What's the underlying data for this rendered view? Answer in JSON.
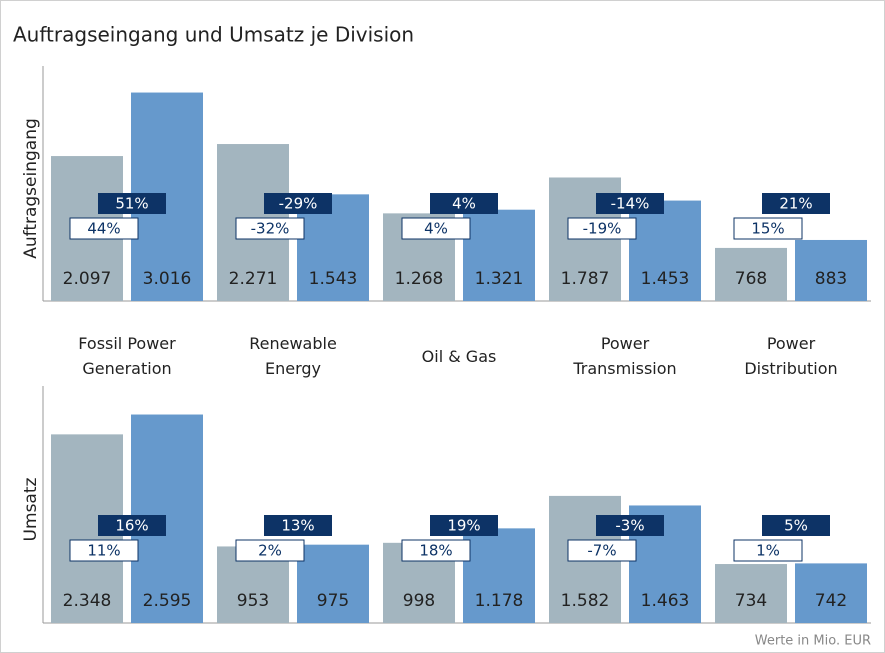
{
  "title": "Auftragseingang und Umsatz je Division",
  "footnote": "Werte in Mio. EUR",
  "chart_data": [
    {
      "type": "bar",
      "ylabel": "Auftragseingang",
      "categories": [
        "Fossil Power Generation",
        "Renewable Energy",
        "Oil & Gas",
        "Power Transmission",
        "Power Distribution"
      ],
      "ylim": [
        0,
        3400
      ],
      "series": [
        {
          "color": "#a3b5bf",
          "values": [
            2097,
            2271,
            1268,
            1787,
            768
          ],
          "value_labels": [
            "2.097",
            "2.271",
            "1.268",
            "1.787",
            "768"
          ]
        },
        {
          "color": "#6699cc",
          "values": [
            3016,
            1543,
            1321,
            1453,
            883
          ],
          "value_labels": [
            "3.016",
            "1.543",
            "1.321",
            "1.453",
            "883"
          ]
        }
      ],
      "annotations": {
        "nominal": [
          "51%",
          "-29%",
          "4%",
          "-14%",
          "21%"
        ],
        "comparable": [
          "44%",
          "-32%",
          "4%",
          "-19%",
          "15%"
        ]
      }
    },
    {
      "type": "bar",
      "ylabel": "Umsatz",
      "categories": [
        "Fossil Power Generation",
        "Renewable Energy",
        "Oil & Gas",
        "Power Transmission",
        "Power Distribution"
      ],
      "ylim": [
        0,
        2950
      ],
      "series": [
        {
          "color": "#a3b5bf",
          "values": [
            2348,
            953,
            998,
            1582,
            734
          ],
          "value_labels": [
            "2.348",
            "953",
            "998",
            "1.582",
            "734"
          ]
        },
        {
          "color": "#6699cc",
          "values": [
            2595,
            975,
            1178,
            1463,
            742
          ],
          "value_labels": [
            "2.595",
            "975",
            "1.178",
            "1.463",
            "742"
          ]
        }
      ],
      "annotations": {
        "nominal": [
          "16%",
          "13%",
          "19%",
          "-3%",
          "5%"
        ],
        "comparable": [
          "11%",
          "2%",
          "18%",
          "-7%",
          "1%"
        ]
      }
    }
  ]
}
